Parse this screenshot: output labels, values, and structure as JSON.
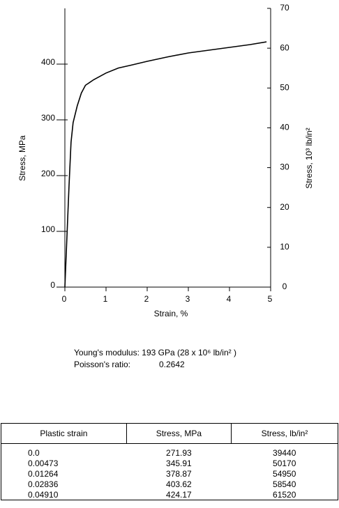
{
  "chart_data": {
    "type": "line",
    "ylabel": "Stress, MPa",
    "xlabel": "Strain, %",
    "y2label": "Stress, 10³ lb/in²",
    "x": [
      0,
      0.05,
      0.1,
      0.15,
      0.2,
      0.3,
      0.4,
      0.5,
      0.7,
      1.0,
      1.3,
      1.6,
      2.0,
      2.5,
      3.0,
      3.5,
      4.0,
      4.5,
      4.9
    ],
    "values": [
      0,
      90,
      180,
      260,
      295,
      325,
      348,
      362,
      372,
      384,
      393,
      398,
      405,
      413,
      420,
      425,
      430,
      435,
      440
    ],
    "color": "#000000",
    "xlim": [
      0,
      5
    ],
    "xticks": [
      0,
      1,
      2,
      3,
      4,
      5
    ],
    "ylim": [
      0,
      500
    ],
    "yticks": [
      0,
      100,
      200,
      300,
      400
    ],
    "y2lim": [
      0,
      70
    ],
    "y2ticks": [
      0,
      10,
      20,
      30,
      40,
      50,
      60,
      70
    ]
  },
  "properties": {
    "modulus_label": "Young's modulus:",
    "modulus_value": "193 GPa (28 x 10⁶ lb/in² )",
    "poisson_label": "Poisson's ratio:",
    "poisson_value": "0.2642"
  },
  "table": {
    "header": [
      "Plastic strain",
      "Stress, MPa",
      "Stress, lb/in²"
    ],
    "rows": [
      [
        "0.0",
        "271.93",
        "39440"
      ],
      [
        "0.00473",
        "345.91",
        "50170"
      ],
      [
        "0.01264",
        "378.87",
        "54950"
      ],
      [
        "0.02836",
        "403.62",
        "58540"
      ],
      [
        "0.04910",
        "424.17",
        "61520"
      ]
    ]
  }
}
